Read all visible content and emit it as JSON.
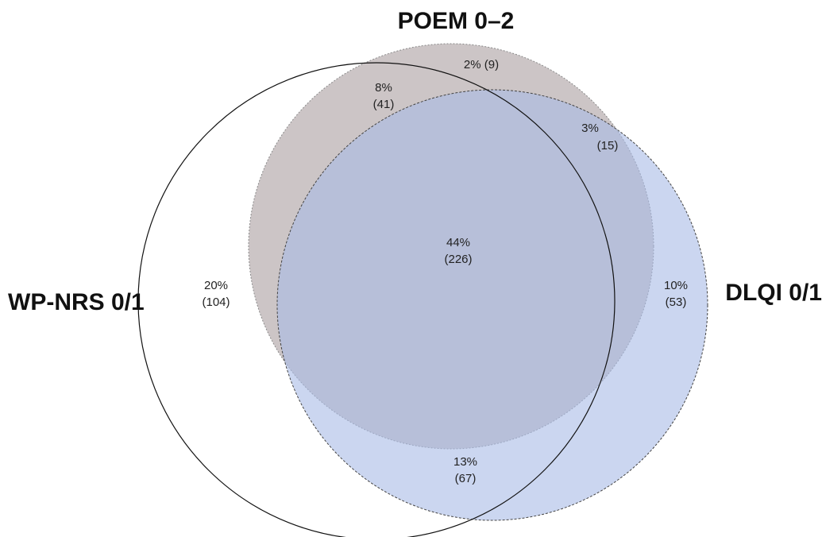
{
  "sets": [
    {
      "id": "wp_nrs",
      "label": "WP-NRS 0/1",
      "fill": "#ffffff",
      "stroke": "#111111",
      "stroke_style": "solid"
    },
    {
      "id": "poem",
      "label": "POEM 0–2",
      "fill": "#c9c2c3",
      "stroke": "#8a8a8a",
      "stroke_style": "dotted"
    },
    {
      "id": "dlqi",
      "label": "DLQI 0/1",
      "fill": "#b3c2e8",
      "stroke": "#444444",
      "stroke_style": "dashed"
    }
  ],
  "regions": [
    {
      "id": "wp_only",
      "sets": [
        "wp_nrs"
      ],
      "percent": "20%",
      "count": "(104)"
    },
    {
      "id": "wp_poem",
      "sets": [
        "wp_nrs",
        "poem"
      ],
      "percent": "8%",
      "count": "(41)"
    },
    {
      "id": "poem_only",
      "sets": [
        "poem"
      ],
      "percent": "2%",
      "count": "(9)"
    },
    {
      "id": "poem_dlqi",
      "sets": [
        "poem",
        "dlqi"
      ],
      "percent": "3%",
      "count": "(15)"
    },
    {
      "id": "all_three",
      "sets": [
        "wp_nrs",
        "poem",
        "dlqi"
      ],
      "percent": "44%",
      "count": "(226)"
    },
    {
      "id": "dlqi_only",
      "sets": [
        "dlqi"
      ],
      "percent": "10%",
      "count": "(53)"
    },
    {
      "id": "wp_dlqi",
      "sets": [
        "wp_nrs",
        "dlqi"
      ],
      "percent": "13%",
      "count": "(67)"
    }
  ]
}
